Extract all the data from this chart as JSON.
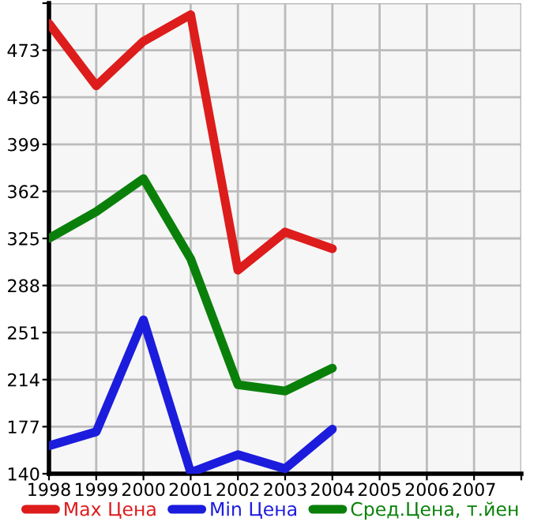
{
  "chart_data": {
    "type": "line",
    "x": [
      1998,
      1999,
      2000,
      2001,
      2002,
      2003,
      2004
    ],
    "series": [
      {
        "name": "Max Цена",
        "color": "#dd1c1c",
        "values": [
          494,
          445,
          480,
          501,
          300,
          330,
          317
        ]
      },
      {
        "name": "Min Цена",
        "color": "#1c1cdd",
        "values": [
          162,
          173,
          261,
          141,
          155,
          144,
          175
        ]
      },
      {
        "name": "Сред.Цена, т.йен",
        "color": "#0a800a",
        "values": [
          325,
          346,
          372,
          309,
          210,
          205,
          223
        ]
      }
    ],
    "xlim": [
      1998,
      2008
    ],
    "xticks": [
      1998,
      1999,
      2000,
      2001,
      2002,
      2003,
      2004,
      2005,
      2006,
      2007,
      {
        "value": 2008,
        "label": null
      }
    ],
    "ylim": [
      140,
      510
    ],
    "yticks": [
      140,
      177,
      214,
      251,
      288,
      325,
      362,
      399,
      436,
      473,
      {
        "value": 510,
        "label": null
      }
    ],
    "grid": true,
    "legend": "bottom",
    "marker": "none",
    "line_style": "solid"
  }
}
